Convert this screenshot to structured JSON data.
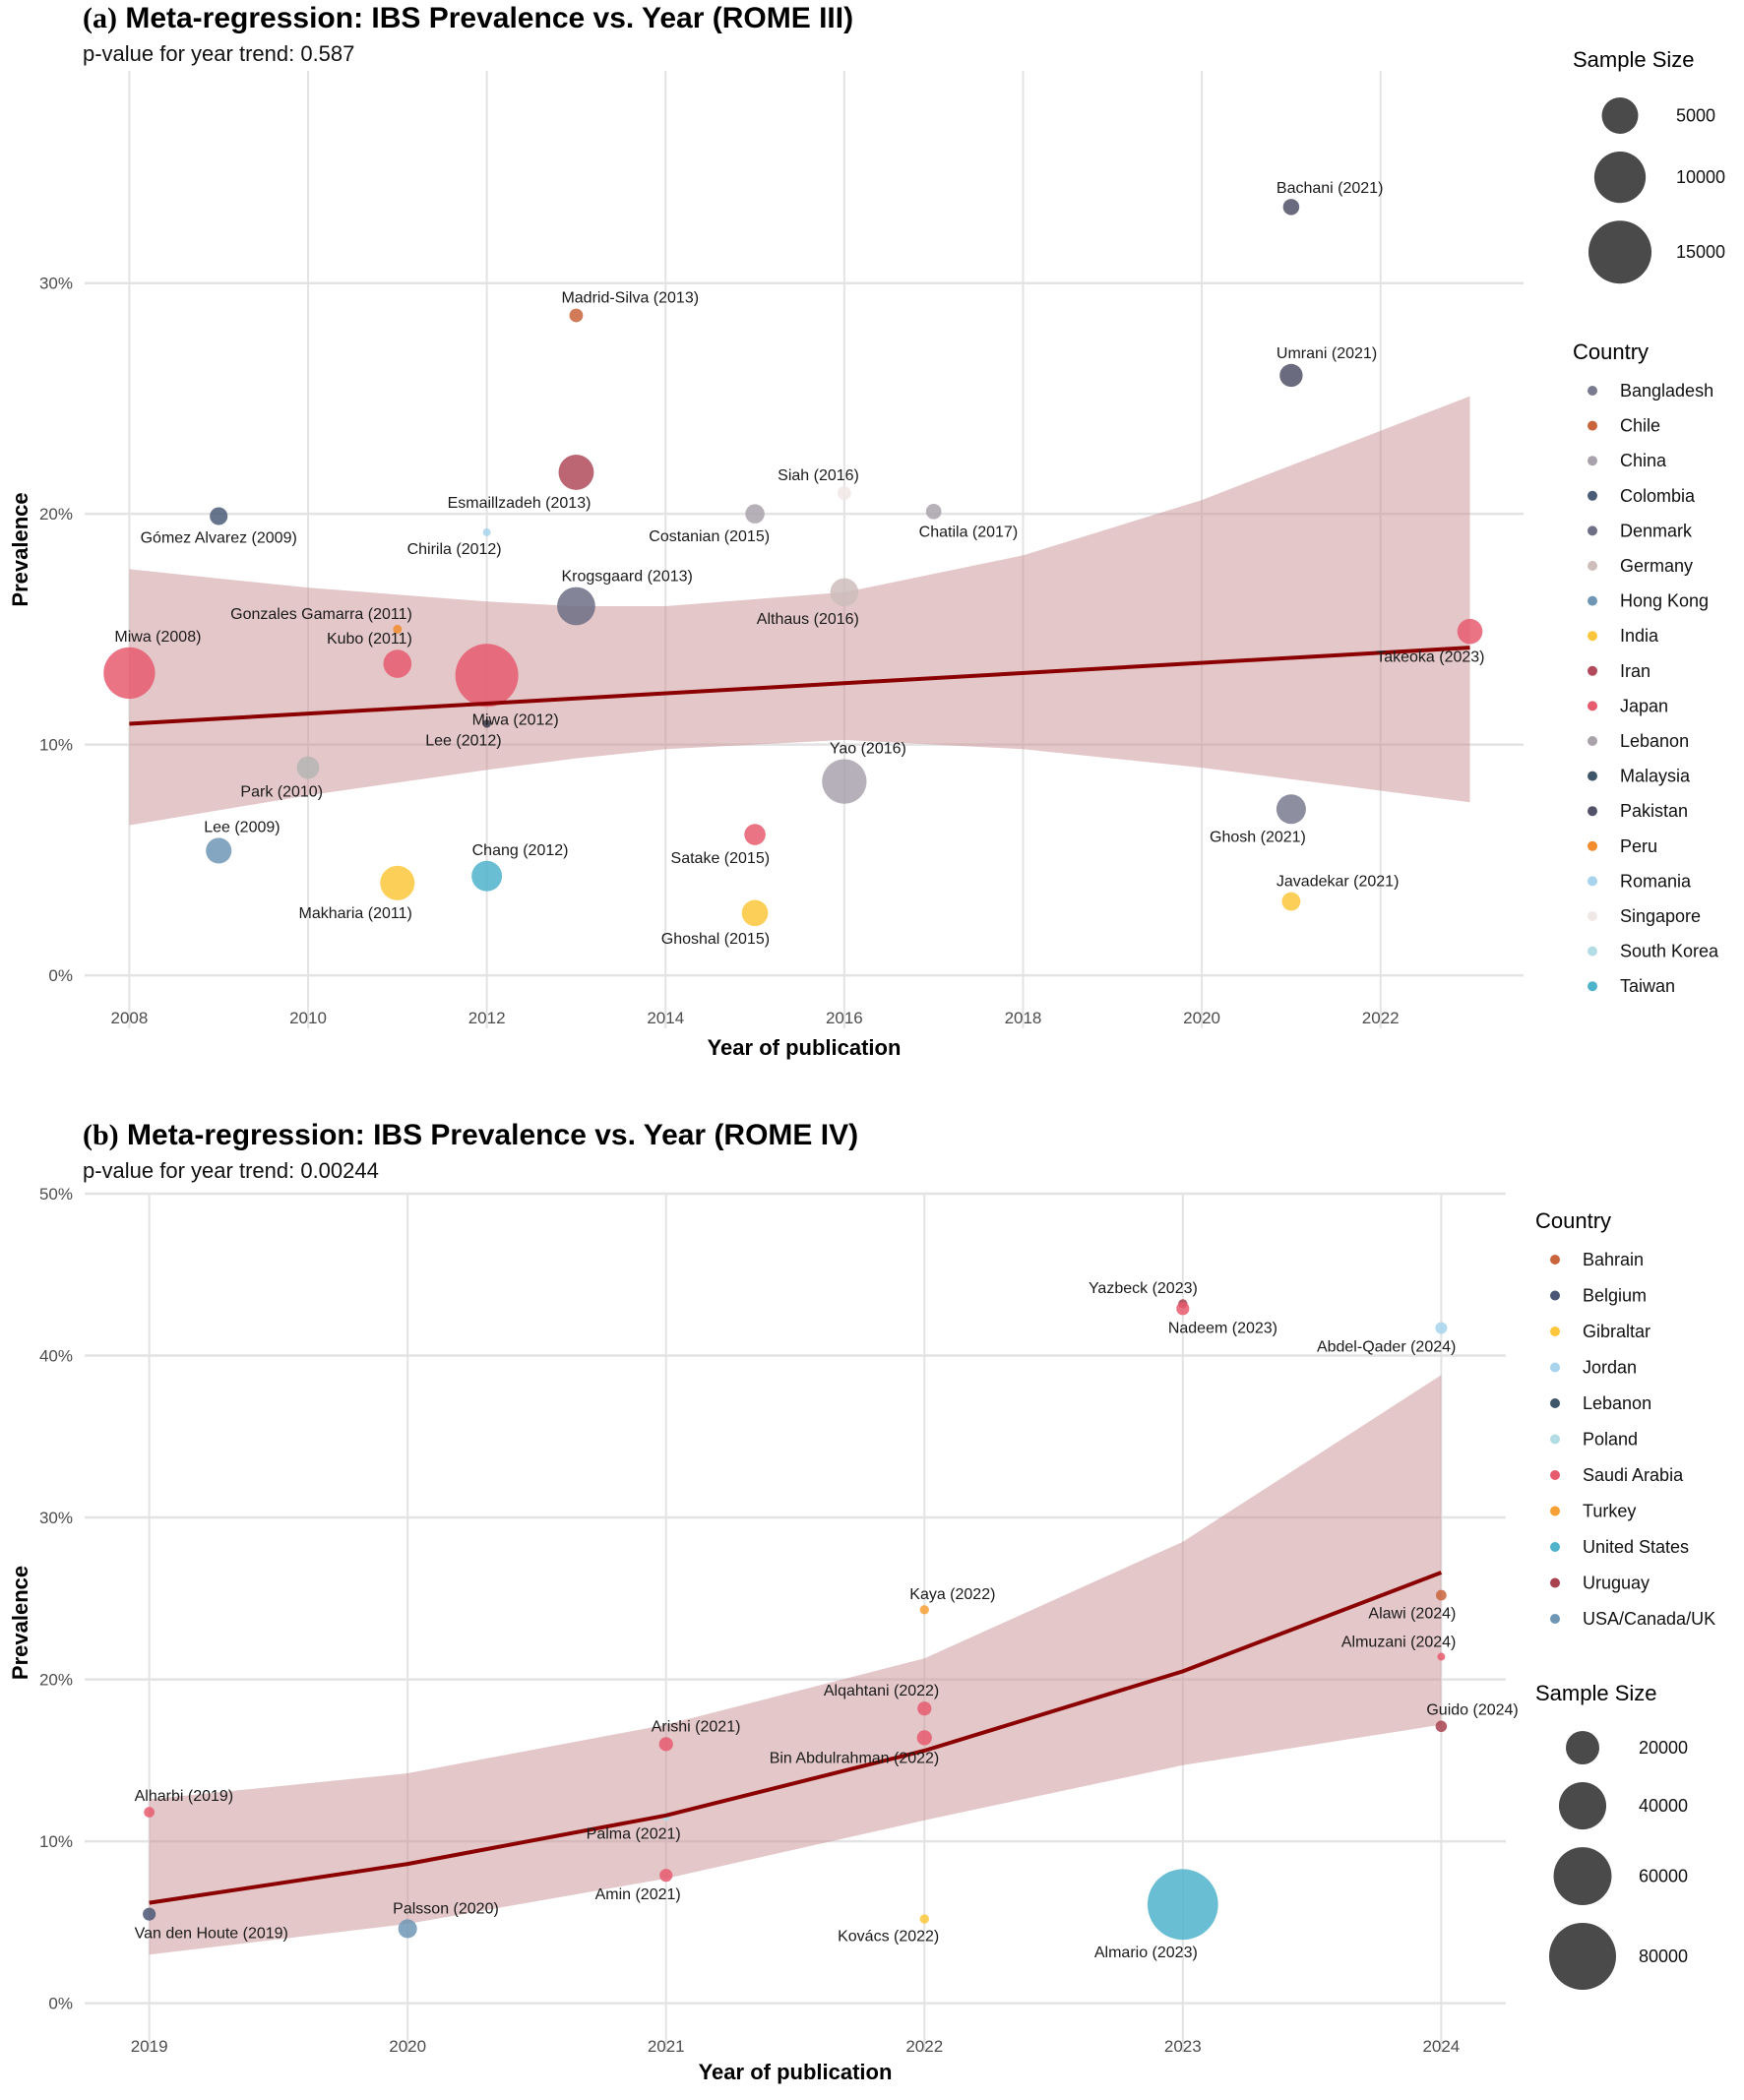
{
  "chart_data": [
    {
      "type": "scatter",
      "panel": "a",
      "title_tag": "(a)",
      "title": "Meta-regression: IBS Prevalence vs. Year (ROME III)",
      "subtitle": "p-value for year trend: 0.587",
      "xlabel": "Year of publication",
      "ylabel": "Prevalence",
      "xlim": [
        2007.5,
        2023.6
      ],
      "ylim": [
        -2.3,
        39.2
      ],
      "x_ticks": [
        2008,
        2010,
        2012,
        2014,
        2016,
        2018,
        2020,
        2022
      ],
      "y_ticks": [
        0,
        10,
        20,
        30
      ],
      "y_tick_labels": [
        "0%",
        "10%",
        "20%",
        "30%"
      ],
      "grid": true,
      "legend_placement": "right",
      "size_legend": {
        "title": "Sample Size",
        "values": [
          5000,
          10000,
          15000
        ],
        "labels": [
          "5000",
          "10000",
          "15000"
        ]
      },
      "size_max_value": 15000,
      "country_legend": {
        "title": "Country",
        "items": [
          {
            "name": "Bangladesh",
            "color": "#7a7a90"
          },
          {
            "name": "Chile",
            "color": "#c9643c"
          },
          {
            "name": "China",
            "color": "#a8a2ad"
          },
          {
            "name": "Colombia",
            "color": "#4b5c78"
          },
          {
            "name": "Denmark",
            "color": "#6f6f86"
          },
          {
            "name": "Germany",
            "color": "#cdbdbb"
          },
          {
            "name": "Hong Kong",
            "color": "#6f97b5"
          },
          {
            "name": "India",
            "color": "#fcc73c"
          },
          {
            "name": "Iran",
            "color": "#b04a5a"
          },
          {
            "name": "Japan",
            "color": "#e65b6e"
          },
          {
            "name": "Lebanon",
            "color": "#a9a2ab"
          },
          {
            "name": "Malaysia",
            "color": "#3f5668"
          },
          {
            "name": "Pakistan",
            "color": "#515168"
          },
          {
            "name": "Peru",
            "color": "#f28c2e"
          },
          {
            "name": "Romania",
            "color": "#a7d3ec"
          },
          {
            "name": "Singapore",
            "color": "#f0e8e6"
          },
          {
            "name": "South Korea",
            "color": "#b3dde4"
          },
          {
            "name": "Taiwan",
            "color": "#4fb3cc"
          }
        ]
      },
      "trend": {
        "color": "#8b0000",
        "fit": [
          {
            "x": 2008,
            "y": 10.9
          },
          {
            "x": 2023,
            "y": 14.2
          }
        ],
        "ci_band_color": "#c98f94",
        "ci": [
          {
            "x": 2008,
            "lo": 6.5,
            "hi": 17.6
          },
          {
            "x": 2010,
            "lo": 7.8,
            "hi": 16.8
          },
          {
            "x": 2012,
            "lo": 8.9,
            "hi": 16.2
          },
          {
            "x": 2013,
            "lo": 9.4,
            "hi": 16.0
          },
          {
            "x": 2014,
            "lo": 9.8,
            "hi": 16.0
          },
          {
            "x": 2016,
            "lo": 10.2,
            "hi": 16.6
          },
          {
            "x": 2018,
            "lo": 9.8,
            "hi": 18.2
          },
          {
            "x": 2020,
            "lo": 9.0,
            "hi": 20.6
          },
          {
            "x": 2022,
            "lo": 8.0,
            "hi": 23.6
          },
          {
            "x": 2023,
            "lo": 7.5,
            "hi": 25.1
          }
        ]
      },
      "points": [
        {
          "label": "Miwa (2008)",
          "year": 2008,
          "prevalence": 13.1,
          "sample_size": 10000,
          "country": "Japan",
          "label_pos": "above-right"
        },
        {
          "label": "Gómez Alvarez (2009)",
          "year": 2009,
          "prevalence": 19.9,
          "sample_size": 1200,
          "country": "Colombia",
          "label_pos": "below"
        },
        {
          "label": "Lee (2009)",
          "year": 2009,
          "prevalence": 5.4,
          "sample_size": 2500,
          "country": "Hong Kong",
          "label_pos": "above-right"
        },
        {
          "label": "Park (2010)",
          "year": 2010,
          "prevalence": 9.0,
          "sample_size": 1900,
          "country": "South Korea",
          "color": "#b5b5b5",
          "label_pos": "below-left"
        },
        {
          "label": "Kubo (2011)",
          "year": 2011,
          "prevalence": 13.5,
          "sample_size": 3000,
          "country": "Japan",
          "label_pos": "above-left"
        },
        {
          "label": "Gonzales Gamarra (2011)",
          "year": 2011,
          "prevalence": 15.0,
          "sample_size": 300,
          "country": "Peru",
          "label_pos": "above-left"
        },
        {
          "label": "Makharia (2011)",
          "year": 2011,
          "prevalence": 4.0,
          "sample_size": 4500,
          "country": "India",
          "label_pos": "below-left"
        },
        {
          "label": "Miwa (2012)",
          "year": 2012,
          "prevalence": 13.0,
          "sample_size": 15000,
          "country": "Japan",
          "label_pos": "below-right"
        },
        {
          "label": "Lee (2012)",
          "year": 2012,
          "prevalence": 10.9,
          "sample_size": 250,
          "country": "Malaysia",
          "color": "#3a3a4a",
          "label_pos": "below-left"
        },
        {
          "label": "Chirila (2012)",
          "year": 2012,
          "prevalence": 19.2,
          "sample_size": 100,
          "country": "Romania",
          "label_pos": "below-left"
        },
        {
          "label": "Chang (2012)",
          "year": 2012,
          "prevalence": 4.3,
          "sample_size": 3500,
          "country": "Taiwan",
          "label_pos": "above-right"
        },
        {
          "label": "Madrid-Silva (2013)",
          "year": 2013,
          "prevalence": 28.6,
          "sample_size": 700,
          "country": "Chile",
          "label_pos": "above-right"
        },
        {
          "label": "Esmaillzadeh (2013)",
          "year": 2013,
          "prevalence": 21.8,
          "sample_size": 4700,
          "country": "Iran",
          "label_pos": "below-left"
        },
        {
          "label": "Krogsgaard (2013)",
          "year": 2013,
          "prevalence": 16.0,
          "sample_size": 5500,
          "country": "Denmark",
          "label_pos": "above-right"
        },
        {
          "label": "Costanian (2015)",
          "year": 2015,
          "prevalence": 20.0,
          "sample_size": 1400,
          "country": "Lebanon",
          "label_pos": "below-left"
        },
        {
          "label": "Satake (2015)",
          "year": 2015,
          "prevalence": 6.1,
          "sample_size": 1700,
          "country": "Japan",
          "label_pos": "below-left"
        },
        {
          "label": "Ghoshal (2015)",
          "year": 2015,
          "prevalence": 2.7,
          "sample_size": 2600,
          "country": "India",
          "label_pos": "below-left"
        },
        {
          "label": "Siah (2016)",
          "year": 2016,
          "prevalence": 20.9,
          "sample_size": 700,
          "country": "Singapore",
          "label_pos": "above-left"
        },
        {
          "label": "Althaus (2016)",
          "year": 2016,
          "prevalence": 16.6,
          "sample_size": 3000,
          "country": "Germany",
          "label_pos": "below-left"
        },
        {
          "label": "Yao (2016)",
          "year": 2016,
          "prevalence": 8.4,
          "sample_size": 7500,
          "country": "China",
          "label_pos": "above-right"
        },
        {
          "label": "Chatila (2017)",
          "year": 2017,
          "prevalence": 20.1,
          "sample_size": 900,
          "country": "Lebanon",
          "label_pos": "below-right"
        },
        {
          "label": "Bachani (2021)",
          "year": 2021,
          "prevalence": 33.3,
          "sample_size": 1000,
          "country": "Pakistan",
          "label_pos": "above-right"
        },
        {
          "label": "Umrani (2021)",
          "year": 2021,
          "prevalence": 26.0,
          "sample_size": 2000,
          "country": "Pakistan",
          "label_pos": "above-right"
        },
        {
          "label": "Ghosh (2021)",
          "year": 2021,
          "prevalence": 7.2,
          "sample_size": 3300,
          "country": "Bangladesh",
          "label_pos": "below-left"
        },
        {
          "label": "Javadekar (2021)",
          "year": 2021,
          "prevalence": 3.2,
          "sample_size": 1300,
          "country": "India",
          "label_pos": "above-right"
        },
        {
          "label": "Takeoka (2023)",
          "year": 2023,
          "prevalence": 14.9,
          "sample_size": 2400,
          "country": "Japan",
          "label_pos": "below-left"
        }
      ]
    },
    {
      "type": "scatter",
      "panel": "b",
      "title_tag": "(b)",
      "title": "Meta-regression: IBS Prevalence vs. Year (ROME IV)",
      "subtitle": "p-value for year trend: 0.00244",
      "xlabel": "Year of publication",
      "ylabel": "Prevalence",
      "xlim": [
        2018.75,
        2024.25
      ],
      "ylim": [
        -3.0,
        50.0
      ],
      "x_ticks": [
        2019,
        2020,
        2021,
        2022,
        2023,
        2024
      ],
      "y_ticks": [
        0,
        10,
        20,
        30,
        40,
        50
      ],
      "y_tick_labels": [
        "0%",
        "10%",
        "20%",
        "30%",
        "40%",
        "50%"
      ],
      "grid": true,
      "legend_placement": "right",
      "size_legend": {
        "title": "Sample Size",
        "values": [
          20000,
          40000,
          60000,
          80000
        ],
        "labels": [
          "20000",
          "40000",
          "60000",
          "80000"
        ]
      },
      "size_max_value": 80000,
      "country_legend": {
        "title": "Country",
        "items": [
          {
            "name": "Bahrain",
            "color": "#c9643c"
          },
          {
            "name": "Belgium",
            "color": "#4b5675"
          },
          {
            "name": "Gibraltar",
            "color": "#fcc73c"
          },
          {
            "name": "Jordan",
            "color": "#a7d3ec"
          },
          {
            "name": "Lebanon",
            "color": "#3f5668"
          },
          {
            "name": "Poland",
            "color": "#b3dde4"
          },
          {
            "name": "Saudi Arabia",
            "color": "#e65b6e"
          },
          {
            "name": "Turkey",
            "color": "#f7a035"
          },
          {
            "name": "United States",
            "color": "#4fb3cc"
          },
          {
            "name": "Uruguay",
            "color": "#a8424f"
          },
          {
            "name": "USA/Canada/UK",
            "color": "#6f97b5"
          }
        ]
      },
      "trend": {
        "color": "#8b0000",
        "fit": [
          {
            "x": 2019,
            "y": 6.2
          },
          {
            "x": 2020,
            "y": 8.6
          },
          {
            "x": 2021,
            "y": 11.6
          },
          {
            "x": 2022,
            "y": 15.6
          },
          {
            "x": 2023,
            "y": 20.5
          },
          {
            "x": 2024,
            "y": 26.6
          }
        ],
        "ci_band_color": "#c98f94",
        "ci": [
          {
            "x": 2019,
            "lo": 3.0,
            "hi": 12.6
          },
          {
            "x": 2020,
            "lo": 4.9,
            "hi": 14.2
          },
          {
            "x": 2021,
            "lo": 7.7,
            "hi": 17.2
          },
          {
            "x": 2022,
            "lo": 11.3,
            "hi": 21.3
          },
          {
            "x": 2023,
            "lo": 14.7,
            "hi": 28.5
          },
          {
            "x": 2024,
            "lo": 17.2,
            "hi": 38.8
          }
        ]
      },
      "points": [
        {
          "label": "Alharbi (2019)",
          "year": 2019,
          "prevalence": 11.8,
          "sample_size": 2000,
          "country": "Saudi Arabia",
          "label_pos": "above-right"
        },
        {
          "label": "Van den Houte (2019)",
          "year": 2019,
          "prevalence": 5.5,
          "sample_size": 3000,
          "country": "Belgium",
          "label_pos": "below-right"
        },
        {
          "label": "Palsson (2020)",
          "year": 2020,
          "prevalence": 4.6,
          "sample_size": 6300,
          "country": "USA/Canada/UK",
          "label_pos": "above-right"
        },
        {
          "label": "Arishi (2021)",
          "year": 2021,
          "prevalence": 16.0,
          "sample_size": 3500,
          "country": "Saudi Arabia",
          "label_pos": "above-right"
        },
        {
          "label": "Palma (2021)",
          "year": 2021,
          "prevalence": 11.5,
          "sample_size": 500,
          "country": "Poland",
          "label_pos": "below-left"
        },
        {
          "label": "Amin (2021)",
          "year": 2021,
          "prevalence": 7.9,
          "sample_size": 3000,
          "country": "Saudi Arabia",
          "label_pos": "below-left"
        },
        {
          "label": "Kaya (2022)",
          "year": 2022,
          "prevalence": 24.3,
          "sample_size": 1500,
          "country": "Turkey",
          "label_pos": "above-right"
        },
        {
          "label": "Alqahtani (2022)",
          "year": 2022,
          "prevalence": 18.2,
          "sample_size": 3500,
          "country": "Saudi Arabia",
          "label_pos": "above-left"
        },
        {
          "label": "Bin Abdulrahman (2022)",
          "year": 2022,
          "prevalence": 16.4,
          "sample_size": 4000,
          "country": "Saudi Arabia",
          "label_pos": "below-left"
        },
        {
          "label": "Kovács (2022)",
          "year": 2022,
          "prevalence": 5.2,
          "sample_size": 1500,
          "country": "Gibraltar",
          "label_pos": "below-left"
        },
        {
          "label": "Yazbeck (2023)",
          "year": 2023,
          "prevalence": 43.2,
          "sample_size": 1500,
          "country": "Uruguay",
          "label_pos": "above-left"
        },
        {
          "label": "Nadeem (2023)",
          "year": 2023,
          "prevalence": 42.9,
          "sample_size": 3000,
          "country": "Saudi Arabia",
          "label_pos": "below-right"
        },
        {
          "label": "Almario (2023)",
          "year": 2023,
          "prevalence": 6.1,
          "sample_size": 89000,
          "country": "United States",
          "label_pos": "below-left"
        },
        {
          "label": "Abdel-Qader (2024)",
          "year": 2024,
          "prevalence": 41.7,
          "sample_size": 2500,
          "country": "Jordan",
          "label_pos": "below-left"
        },
        {
          "label": "Alawi (2024)",
          "year": 2024,
          "prevalence": 25.2,
          "sample_size": 2000,
          "country": "Bahrain",
          "label_pos": "below-left"
        },
        {
          "label": "Almuzani (2024)",
          "year": 2024,
          "prevalence": 21.4,
          "sample_size": 900,
          "country": "Saudi Arabia",
          "label_pos": "above-left"
        },
        {
          "label": "Guido (2024)",
          "year": 2024,
          "prevalence": 17.1,
          "sample_size": 2300,
          "country": "Uruguay",
          "label_pos": "above-right"
        }
      ]
    }
  ]
}
